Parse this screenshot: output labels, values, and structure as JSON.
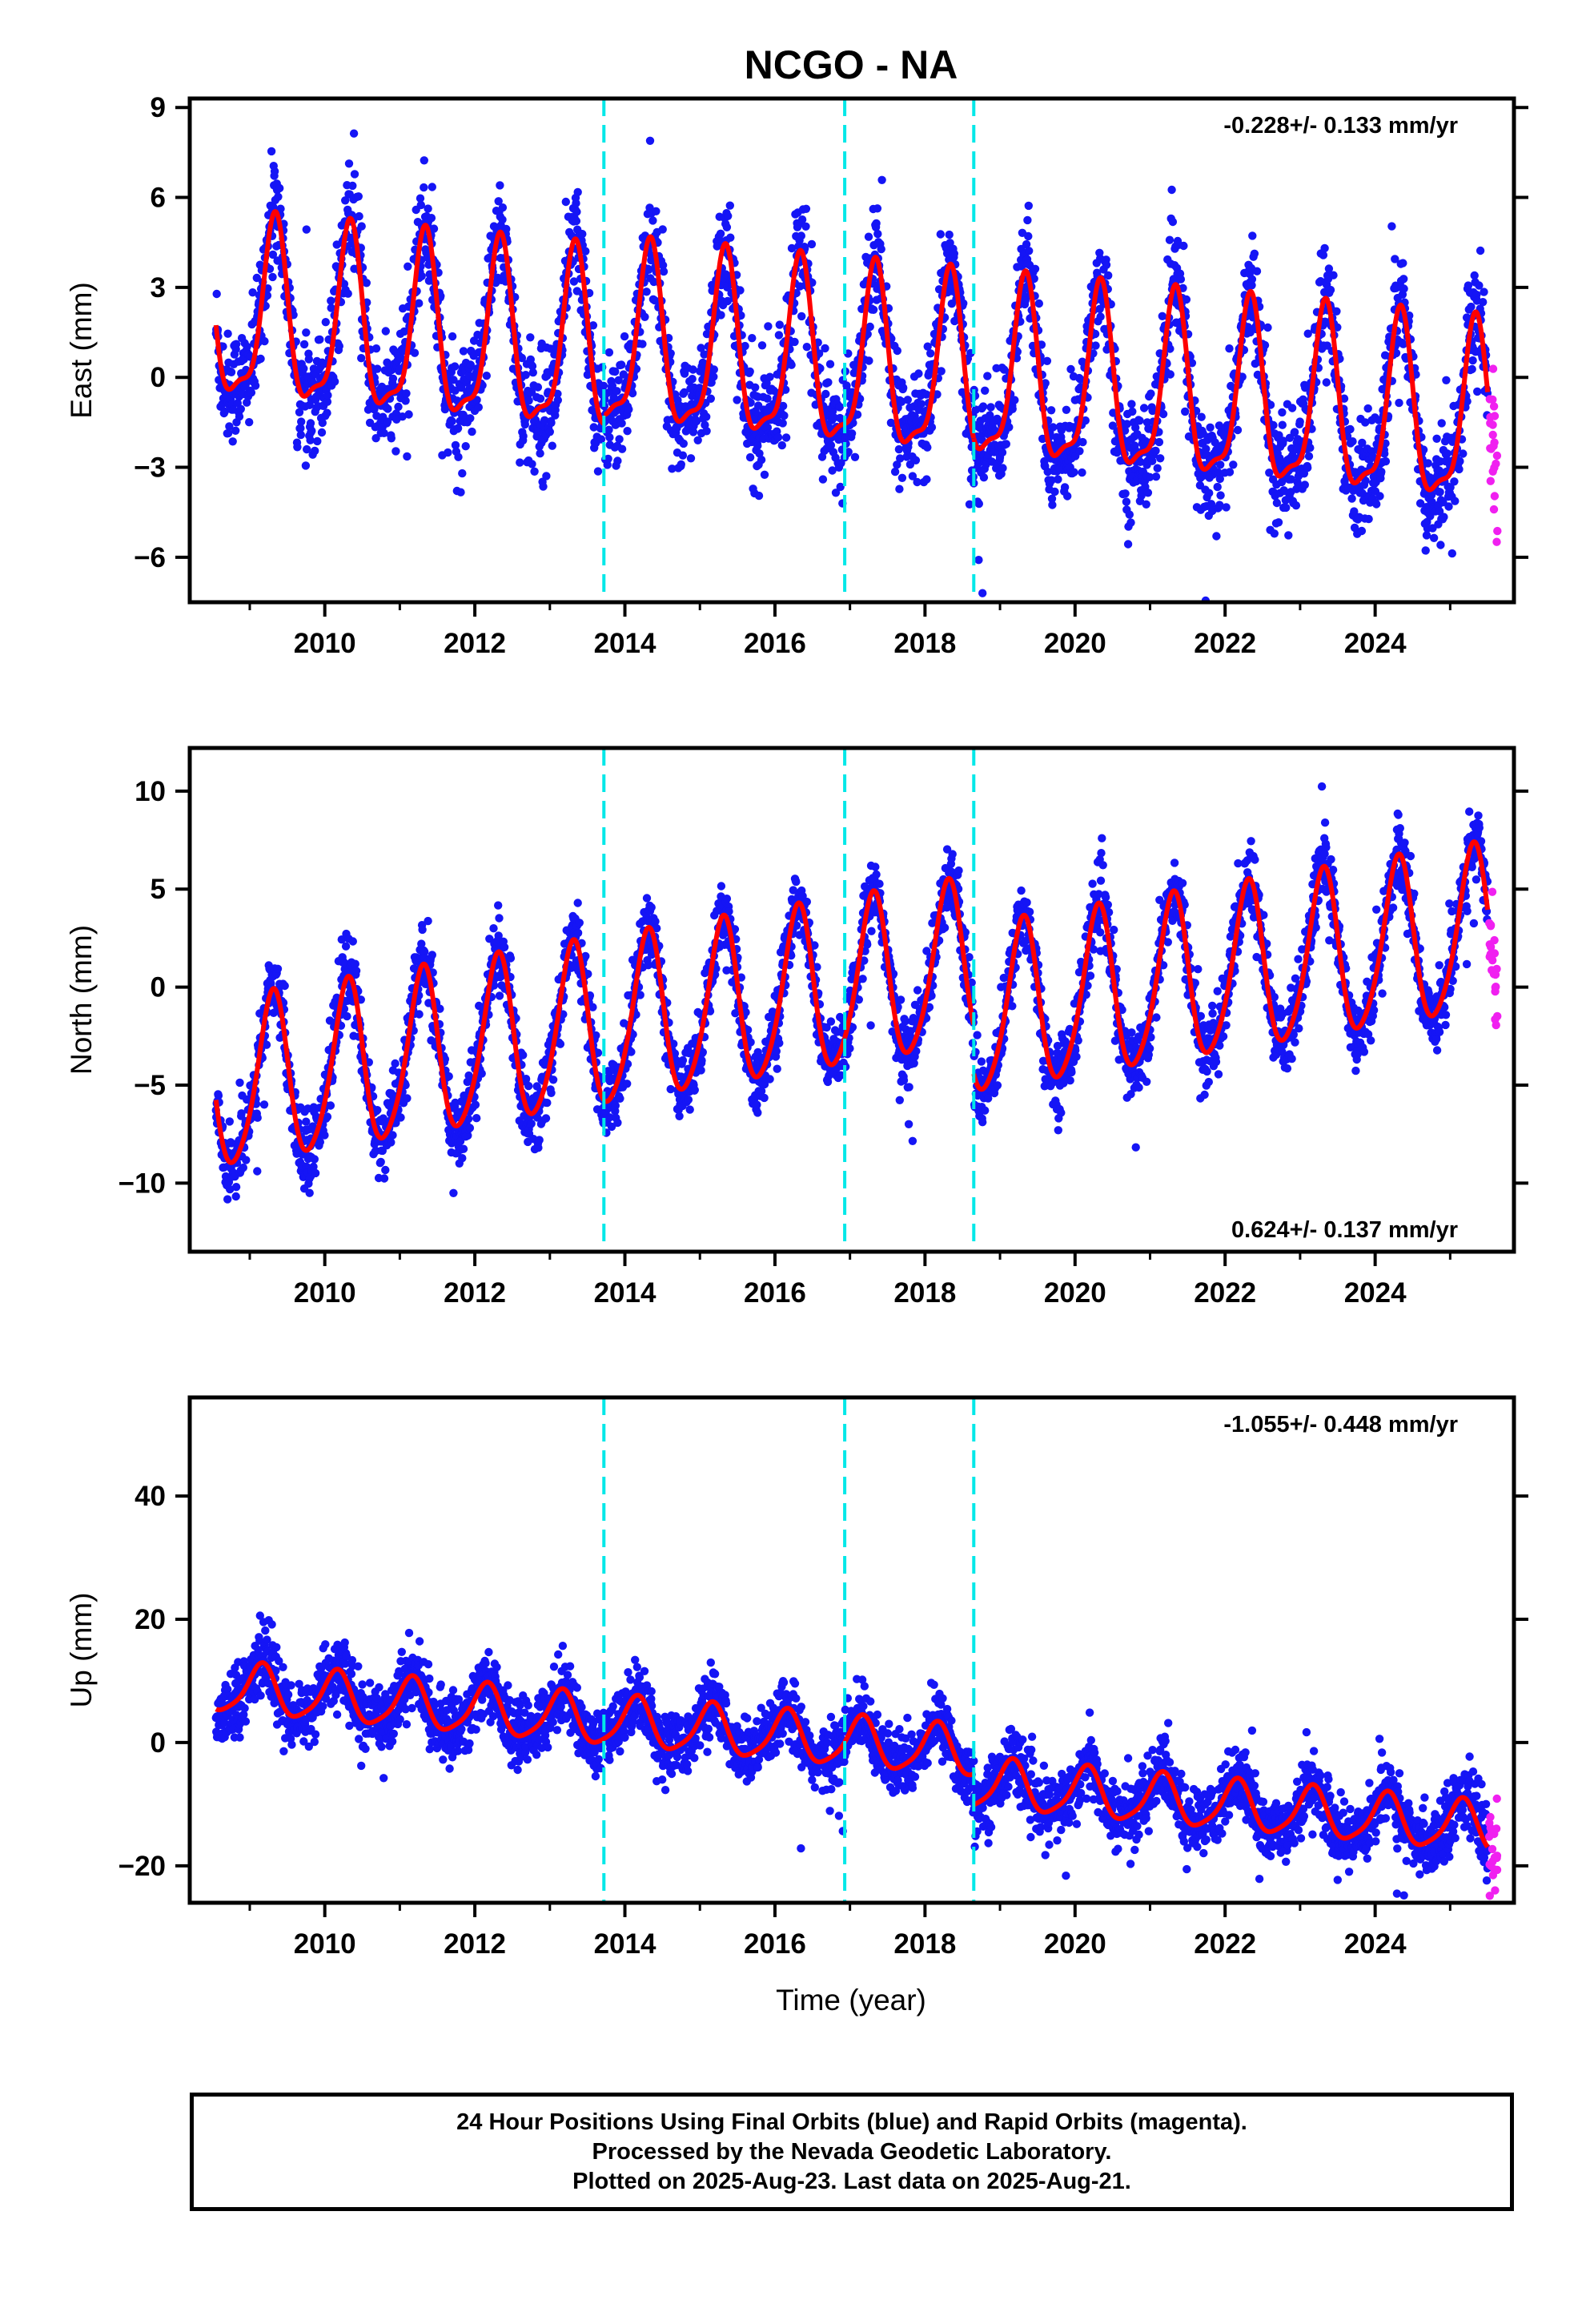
{
  "title": "NCGO - NA",
  "xlabel": "Time (year)",
  "caption": {
    "line1": "24 Hour Positions Using Final Orbits (blue) and Rapid Orbits (magenta).",
    "line2": "Processed by the Nevada Geodetic Laboratory.",
    "line3": "Plotted on 2025-Aug-23. Last data on 2025-Aug-21."
  },
  "colors": {
    "final": "#1515f5",
    "rapid": "#f020f0",
    "model": "#ff0000",
    "offsets": "#00e8e8"
  },
  "chart_data": [
    {
      "type": "scatter",
      "ylabel": "East (mm)",
      "rate_text": "-0.228+/- 0.133 mm/yr",
      "xlim": [
        2008.2,
        2025.85
      ],
      "ylim": [
        -7.5,
        9.3
      ],
      "yticks": [
        -6,
        -3,
        0,
        3,
        6,
        9
      ],
      "xticks": [
        2010,
        2012,
        2014,
        2016,
        2018,
        2020,
        2022,
        2024
      ],
      "offset_lines": [
        2013.72,
        2016.93,
        2018.65
      ],
      "model": {
        "trend_mm_per_yr": -0.228,
        "amp1": 2.9,
        "phase1": 0.33,
        "amp2": 0.9,
        "phase2": 0.35,
        "offsets": [
          0,
          0.3,
          0,
          0
        ],
        "noise": 1.4
      },
      "series": [
        {
          "name": "Final Orbits",
          "color": "final",
          "x_range": [
            2008.55,
            2025.5
          ]
        },
        {
          "name": "Rapid Orbits",
          "color": "rapid",
          "x_range": [
            2025.52,
            2025.63
          ]
        }
      ]
    },
    {
      "type": "scatter",
      "ylabel": "North (mm)",
      "rate_text": "0.624+/- 0.137 mm/yr",
      "xlim": [
        2008.2,
        2025.85
      ],
      "ylim": [
        -13.5,
        12.2
      ],
      "yticks": [
        -10,
        -5,
        0,
        5,
        10
      ],
      "xticks": [
        2010,
        2012,
        2014,
        2016,
        2018,
        2020,
        2022,
        2024
      ],
      "offset_lines": [
        2013.72,
        2016.93,
        2018.65
      ],
      "model": {
        "trend_mm_per_yr": 0.624,
        "amp1": 4.2,
        "phase1": 0.3,
        "amp2": 0.6,
        "phase2": 0.35,
        "offsets": [
          0,
          0,
          0,
          -2.5
        ],
        "noise": 1.4
      },
      "series": [
        {
          "name": "Final Orbits",
          "color": "final",
          "x_range": [
            2008.55,
            2025.5
          ]
        },
        {
          "name": "Rapid Orbits",
          "color": "rapid",
          "x_range": [
            2025.52,
            2025.63
          ]
        }
      ]
    },
    {
      "type": "scatter",
      "ylabel": "Up (mm)",
      "rate_text": "-1.055+/- 0.448 mm/yr",
      "xlim": [
        2008.2,
        2025.85
      ],
      "ylim": [
        -26,
        56
      ],
      "yticks": [
        -20,
        0,
        20,
        40
      ],
      "xticks": [
        2010,
        2012,
        2014,
        2016,
        2018,
        2020,
        2022,
        2024
      ],
      "offset_lines": [
        2013.72,
        2016.93,
        2018.65
      ],
      "model": {
        "trend_mm_per_yr": -1.055,
        "amp1": 4.0,
        "phase1": 0.15,
        "amp2": 0.8,
        "phase2": 0.2,
        "offsets": [
          0,
          0,
          0,
          -5.0
        ],
        "noise": 4.0
      },
      "series": [
        {
          "name": "Final Orbits",
          "color": "final",
          "x_range": [
            2008.55,
            2025.5
          ]
        },
        {
          "name": "Rapid Orbits",
          "color": "rapid",
          "x_range": [
            2025.52,
            2025.63
          ]
        }
      ]
    }
  ]
}
